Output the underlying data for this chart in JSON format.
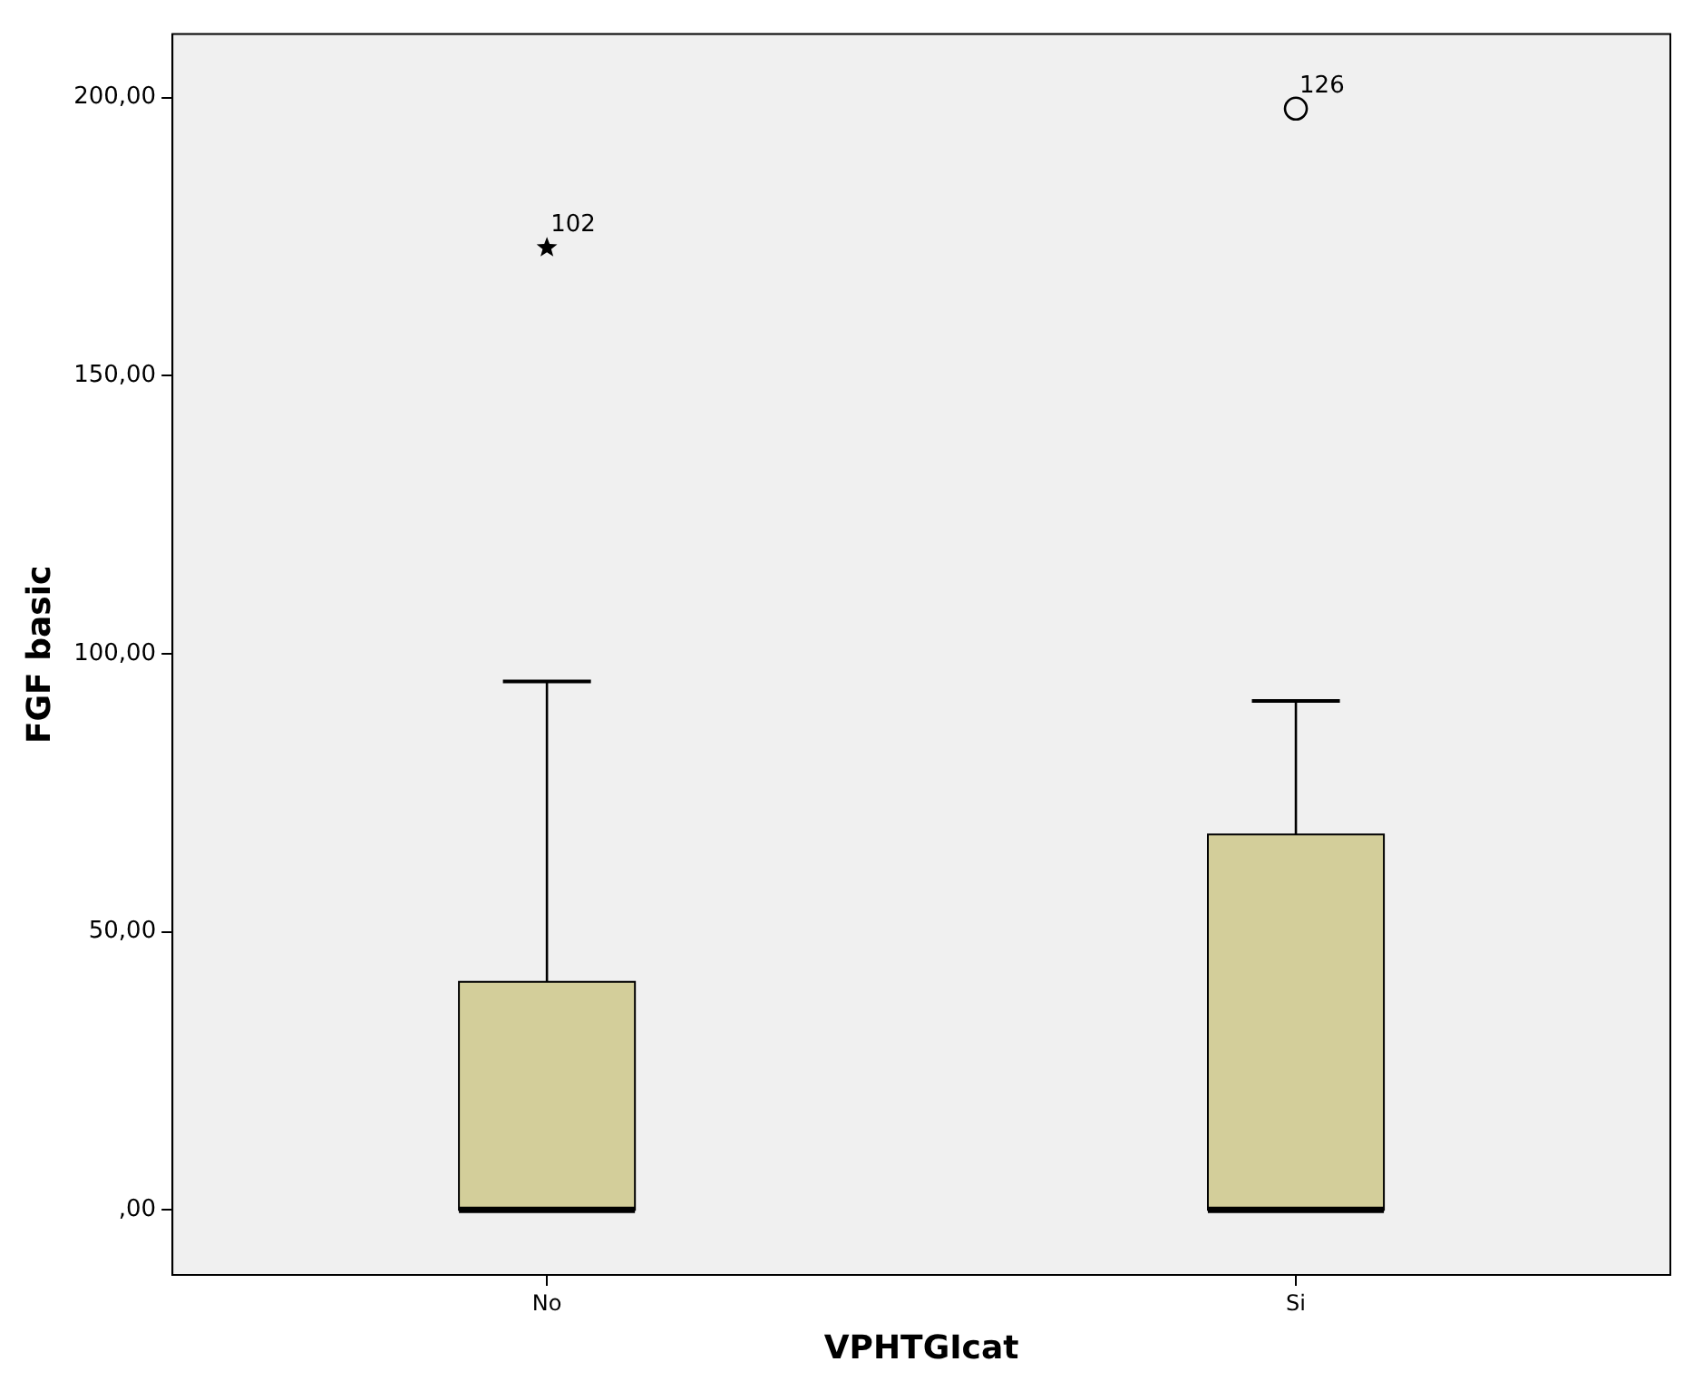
{
  "chart_data": {
    "type": "box",
    "xlabel": "VPHTGIcat",
    "ylabel": "FGF basic",
    "categories": [
      "No",
      "Si"
    ],
    "color": "#d3ce9a",
    "boxes": [
      {
        "low": 0,
        "q1": 0,
        "median": 0,
        "q3": 41,
        "high": 95
      },
      {
        "low": 0,
        "q1": 0,
        "median": 0,
        "q3": 67.5,
        "high": 91.5
      }
    ],
    "series": [
      {
        "type": "scatter",
        "x": [
          "No"
        ],
        "values": [
          173
        ],
        "marker": "star",
        "color": "#000000"
      },
      {
        "type": "scatter",
        "x": [
          "Si"
        ],
        "values": [
          198
        ],
        "marker": "circle",
        "color": "#000000"
      }
    ],
    "annotations": [
      {
        "text": "102",
        "x": "No",
        "y": 173
      },
      {
        "text": "126",
        "x": "Si",
        "y": 198
      }
    ],
    "ylim": [
      -11.7,
      211.4
    ],
    "yticks": [
      {
        "value": 0,
        "label": ",00"
      },
      {
        "value": 50,
        "label": "50,00"
      },
      {
        "value": 100,
        "label": "100,00"
      },
      {
        "value": 150,
        "label": "150,00"
      },
      {
        "value": 200,
        "label": "200,00"
      }
    ]
  }
}
